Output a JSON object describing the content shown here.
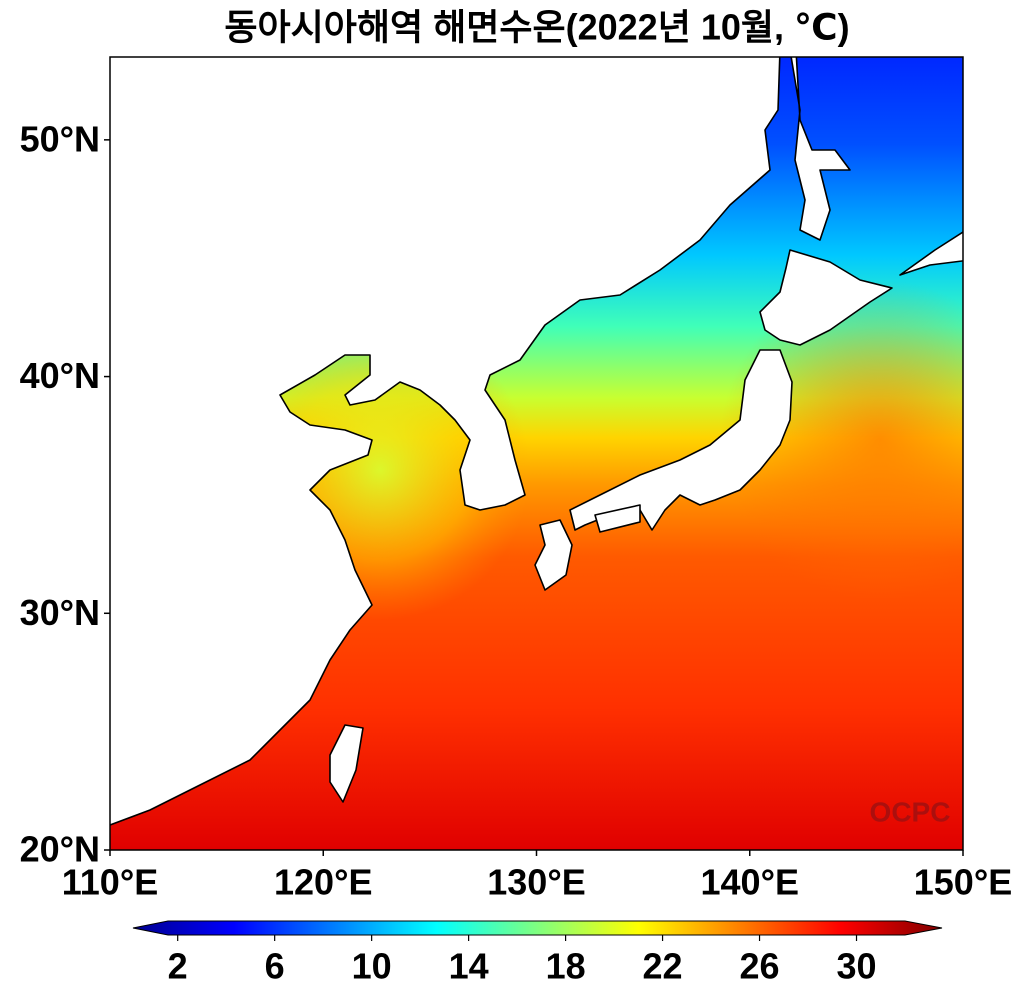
{
  "chart_data": {
    "type": "map",
    "title": "동아시아해역 해면수온(2022년 10월, ℃)",
    "xlim": [
      110,
      150
    ],
    "ylim": [
      20,
      53.5
    ],
    "xticks": [
      {
        "value": 110,
        "label": "110°E"
      },
      {
        "value": 120,
        "label": "120°E"
      },
      {
        "value": 130,
        "label": "130°E"
      },
      {
        "value": 140,
        "label": "140°E"
      },
      {
        "value": 150,
        "label": "150°E"
      }
    ],
    "yticks": [
      {
        "value": 20,
        "label": "20°N"
      },
      {
        "value": 30,
        "label": "30°N"
      },
      {
        "value": 40,
        "label": "40°N"
      },
      {
        "value": 50,
        "label": "50°N"
      }
    ],
    "colorbar": {
      "lim": [
        1.6,
        32
      ],
      "ticks": [
        2,
        6,
        10,
        14,
        18,
        22,
        26,
        30
      ]
    },
    "watermark": "OCPC"
  }
}
